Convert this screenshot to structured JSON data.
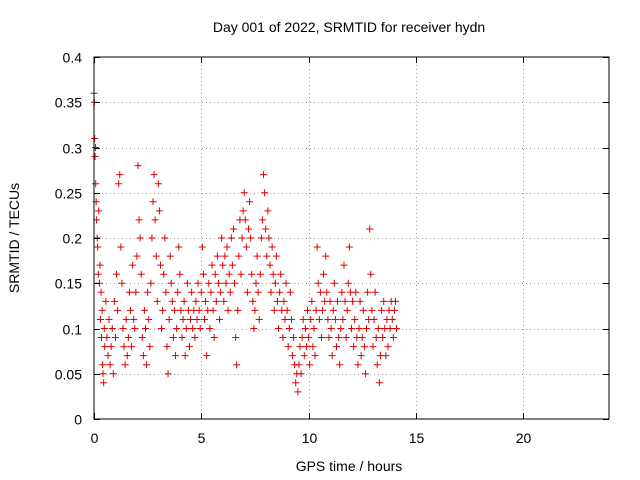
{
  "chart_data": {
    "type": "scatter",
    "title": "Day 001 of 2022, SRMTID for receiver hydn",
    "xlabel": "GPS time / hours",
    "ylabel": "SRMTID / TECUs",
    "xlim": [
      0,
      24
    ],
    "ylim": [
      0,
      0.4
    ],
    "xticks": [
      0,
      5,
      10,
      15,
      20
    ],
    "xtick_labels": [
      "0",
      "5",
      "10",
      "15",
      "20"
    ],
    "yticks": [
      0,
      0.05,
      0.1,
      0.15,
      0.2,
      0.25,
      0.3,
      0.35,
      0.4
    ],
    "ytick_labels": [
      "0",
      "0.05",
      "0.1",
      "0.15",
      "0.2",
      "0.25",
      "0.3",
      "0.35",
      "0.4"
    ],
    "grid": true,
    "marker": "+",
    "color": "#e00000",
    "series": [
      {
        "name": "SRMTID",
        "points": [
          [
            0.0,
            0.36
          ],
          [
            0.02,
            0.35
          ],
          [
            0.03,
            0.31
          ],
          [
            0.05,
            0.29
          ],
          [
            0.07,
            0.3
          ],
          [
            0.08,
            0.26
          ],
          [
            0.1,
            0.24
          ],
          [
            0.12,
            0.22
          ],
          [
            0.15,
            0.2
          ],
          [
            0.17,
            0.19
          ],
          [
            0.2,
            0.16
          ],
          [
            0.22,
            0.23
          ],
          [
            0.25,
            0.15
          ],
          [
            0.28,
            0.17
          ],
          [
            0.3,
            0.11
          ],
          [
            0.33,
            0.14
          ],
          [
            0.35,
            0.09
          ],
          [
            0.38,
            0.12
          ],
          [
            0.4,
            0.06
          ],
          [
            0.42,
            0.05
          ],
          [
            0.45,
            0.04
          ],
          [
            0.48,
            0.1
          ],
          [
            0.5,
            0.08
          ],
          [
            0.55,
            0.13
          ],
          [
            0.6,
            0.09
          ],
          [
            0.65,
            0.07
          ],
          [
            0.7,
            0.11
          ],
          [
            0.75,
            0.06
          ],
          [
            0.8,
            0.08
          ],
          [
            0.85,
            0.1
          ],
          [
            0.9,
            0.05
          ],
          [
            0.95,
            0.13
          ],
          [
            1.0,
            0.09
          ],
          [
            1.05,
            0.16
          ],
          [
            1.1,
            0.12
          ],
          [
            1.15,
            0.26
          ],
          [
            1.2,
            0.27
          ],
          [
            1.25,
            0.19
          ],
          [
            1.3,
            0.15
          ],
          [
            1.35,
            0.1
          ],
          [
            1.4,
            0.08
          ],
          [
            1.45,
            0.06
          ],
          [
            1.5,
            0.11
          ],
          [
            1.55,
            0.07
          ],
          [
            1.6,
            0.09
          ],
          [
            1.65,
            0.14
          ],
          [
            1.7,
            0.12
          ],
          [
            1.75,
            0.08
          ],
          [
            1.8,
            0.17
          ],
          [
            1.85,
            0.11
          ],
          [
            1.9,
            0.1
          ],
          [
            1.95,
            0.14
          ],
          [
            2.0,
            0.18
          ],
          [
            2.05,
            0.28
          ],
          [
            2.1,
            0.22
          ],
          [
            2.15,
            0.2
          ],
          [
            2.2,
            0.16
          ],
          [
            2.25,
            0.09
          ],
          [
            2.3,
            0.07
          ],
          [
            2.35,
            0.12
          ],
          [
            2.4,
            0.1
          ],
          [
            2.45,
            0.06
          ],
          [
            2.5,
            0.14
          ],
          [
            2.55,
            0.11
          ],
          [
            2.6,
            0.08
          ],
          [
            2.65,
            0.15
          ],
          [
            2.7,
            0.2
          ],
          [
            2.75,
            0.24
          ],
          [
            2.8,
            0.27
          ],
          [
            2.85,
            0.22
          ],
          [
            2.9,
            0.18
          ],
          [
            2.95,
            0.13
          ],
          [
            3.0,
            0.26
          ],
          [
            3.05,
            0.23
          ],
          [
            3.1,
            0.17
          ],
          [
            3.15,
            0.1
          ],
          [
            3.2,
            0.12
          ],
          [
            3.25,
            0.16
          ],
          [
            3.3,
            0.2
          ],
          [
            3.35,
            0.14
          ],
          [
            3.4,
            0.08
          ],
          [
            3.45,
            0.05
          ],
          [
            3.5,
            0.11
          ],
          [
            3.55,
            0.18
          ],
          [
            3.6,
            0.15
          ],
          [
            3.65,
            0.13
          ],
          [
            3.7,
            0.09
          ],
          [
            3.75,
            0.12
          ],
          [
            3.8,
            0.07
          ],
          [
            3.85,
            0.1
          ],
          [
            3.9,
            0.14
          ],
          [
            3.95,
            0.19
          ],
          [
            4.0,
            0.16
          ],
          [
            4.05,
            0.12
          ],
          [
            4.1,
            0.09
          ],
          [
            4.15,
            0.11
          ],
          [
            4.2,
            0.13
          ],
          [
            4.25,
            0.07
          ],
          [
            4.3,
            0.1
          ],
          [
            4.35,
            0.15
          ],
          [
            4.4,
            0.12
          ],
          [
            4.45,
            0.08
          ],
          [
            4.5,
            0.11
          ],
          [
            4.55,
            0.14
          ],
          [
            4.6,
            0.1
          ],
          [
            4.65,
            0.12
          ],
          [
            4.7,
            0.09
          ],
          [
            4.75,
            0.13
          ],
          [
            4.8,
            0.11
          ],
          [
            4.85,
            0.15
          ],
          [
            4.9,
            0.12
          ],
          [
            4.95,
            0.1
          ],
          [
            5.0,
            0.14
          ],
          [
            5.05,
            0.19
          ],
          [
            5.1,
            0.16
          ],
          [
            5.15,
            0.11
          ],
          [
            5.2,
            0.13
          ],
          [
            5.25,
            0.07
          ],
          [
            5.3,
            0.12
          ],
          [
            5.35,
            0.15
          ],
          [
            5.4,
            0.1
          ],
          [
            5.45,
            0.14
          ],
          [
            5.5,
            0.17
          ],
          [
            5.55,
            0.12
          ],
          [
            5.6,
            0.09
          ],
          [
            5.65,
            0.16
          ],
          [
            5.7,
            0.13
          ],
          [
            5.75,
            0.18
          ],
          [
            5.8,
            0.15
          ],
          [
            5.85,
            0.11
          ],
          [
            5.9,
            0.14
          ],
          [
            5.95,
            0.2
          ],
          [
            6.0,
            0.17
          ],
          [
            6.05,
            0.13
          ],
          [
            6.1,
            0.18
          ],
          [
            6.15,
            0.15
          ],
          [
            6.2,
            0.19
          ],
          [
            6.25,
            0.12
          ],
          [
            6.3,
            0.16
          ],
          [
            6.35,
            0.14
          ],
          [
            6.4,
            0.2
          ],
          [
            6.45,
            0.17
          ],
          [
            6.5,
            0.21
          ],
          [
            6.55,
            0.15
          ],
          [
            6.6,
            0.09
          ],
          [
            6.65,
            0.06
          ],
          [
            6.7,
            0.12
          ],
          [
            6.75,
            0.18
          ],
          [
            6.8,
            0.22
          ],
          [
            6.85,
            0.16
          ],
          [
            6.9,
            0.2
          ],
          [
            6.95,
            0.23
          ],
          [
            7.0,
            0.25
          ],
          [
            7.05,
            0.22
          ],
          [
            7.1,
            0.19
          ],
          [
            7.15,
            0.14
          ],
          [
            7.2,
            0.21
          ],
          [
            7.25,
            0.24
          ],
          [
            7.3,
            0.2
          ],
          [
            7.35,
            0.16
          ],
          [
            7.4,
            0.13
          ],
          [
            7.45,
            0.1
          ],
          [
            7.5,
            0.12
          ],
          [
            7.55,
            0.15
          ],
          [
            7.6,
            0.18
          ],
          [
            7.65,
            0.14
          ],
          [
            7.7,
            0.11
          ],
          [
            7.75,
            0.16
          ],
          [
            7.8,
            0.2
          ],
          [
            7.85,
            0.22
          ],
          [
            7.9,
            0.27
          ],
          [
            7.95,
            0.25
          ],
          [
            8.0,
            0.21
          ],
          [
            8.05,
            0.18
          ],
          [
            8.1,
            0.23
          ],
          [
            8.15,
            0.2
          ],
          [
            8.2,
            0.17
          ],
          [
            8.25,
            0.14
          ],
          [
            8.3,
            0.19
          ],
          [
            8.35,
            0.16
          ],
          [
            8.4,
            0.12
          ],
          [
            8.45,
            0.15
          ],
          [
            8.5,
            0.18
          ],
          [
            8.55,
            0.13
          ],
          [
            8.6,
            0.1
          ],
          [
            8.65,
            0.14
          ],
          [
            8.7,
            0.16
          ],
          [
            8.75,
            0.12
          ],
          [
            8.8,
            0.09
          ],
          [
            8.85,
            0.13
          ],
          [
            8.9,
            0.11
          ],
          [
            8.95,
            0.15
          ],
          [
            9.0,
            0.12
          ],
          [
            9.05,
            0.08
          ],
          [
            9.1,
            0.1
          ],
          [
            9.15,
            0.14
          ],
          [
            9.2,
            0.11
          ],
          [
            9.25,
            0.07
          ],
          [
            9.3,
            0.09
          ],
          [
            9.35,
            0.06
          ],
          [
            9.4,
            0.04
          ],
          [
            9.45,
            0.05
          ],
          [
            9.5,
            0.03
          ],
          [
            9.55,
            0.06
          ],
          [
            9.6,
            0.08
          ],
          [
            9.65,
            0.05
          ],
          [
            9.7,
            0.09
          ],
          [
            9.75,
            0.11
          ],
          [
            9.8,
            0.07
          ],
          [
            9.85,
            0.1
          ],
          [
            9.9,
            0.08
          ],
          [
            9.95,
            0.12
          ],
          [
            10.0,
            0.09
          ],
          [
            10.05,
            0.06
          ],
          [
            10.1,
            0.11
          ],
          [
            10.15,
            0.13
          ],
          [
            10.2,
            0.08
          ],
          [
            10.25,
            0.1
          ],
          [
            10.3,
            0.07
          ],
          [
            10.35,
            0.12
          ],
          [
            10.4,
            0.19
          ],
          [
            10.45,
            0.15
          ],
          [
            10.5,
            0.11
          ],
          [
            10.55,
            0.14
          ],
          [
            10.6,
            0.09
          ],
          [
            10.65,
            0.12
          ],
          [
            10.7,
            0.16
          ],
          [
            10.75,
            0.13
          ],
          [
            10.8,
            0.18
          ],
          [
            10.85,
            0.14
          ],
          [
            10.9,
            0.11
          ],
          [
            10.95,
            0.09
          ],
          [
            11.0,
            0.13
          ],
          [
            11.05,
            0.1
          ],
          [
            11.1,
            0.07
          ],
          [
            11.15,
            0.12
          ],
          [
            11.2,
            0.15
          ],
          [
            11.25,
            0.11
          ],
          [
            11.3,
            0.08
          ],
          [
            11.35,
            0.13
          ],
          [
            11.4,
            0.09
          ],
          [
            11.45,
            0.06
          ],
          [
            11.5,
            0.1
          ],
          [
            11.55,
            0.14
          ],
          [
            11.6,
            0.11
          ],
          [
            11.65,
            0.17
          ],
          [
            11.7,
            0.13
          ],
          [
            11.75,
            0.09
          ],
          [
            11.8,
            0.12
          ],
          [
            11.85,
            0.15
          ],
          [
            11.9,
            0.19
          ],
          [
            11.95,
            0.14
          ],
          [
            12.0,
            0.1
          ],
          [
            12.05,
            0.13
          ],
          [
            12.1,
            0.08
          ],
          [
            12.15,
            0.11
          ],
          [
            12.2,
            0.14
          ],
          [
            12.25,
            0.09
          ],
          [
            12.3,
            0.06
          ],
          [
            12.35,
            0.1
          ],
          [
            12.4,
            0.13
          ],
          [
            12.45,
            0.07
          ],
          [
            12.5,
            0.09
          ],
          [
            12.55,
            0.12
          ],
          [
            12.6,
            0.08
          ],
          [
            12.65,
            0.05
          ],
          [
            12.7,
            0.1
          ],
          [
            12.75,
            0.14
          ],
          [
            12.8,
            0.11
          ],
          [
            12.85,
            0.21
          ],
          [
            12.9,
            0.16
          ],
          [
            12.95,
            0.12
          ],
          [
            13.0,
            0.08
          ],
          [
            13.05,
            0.11
          ],
          [
            13.1,
            0.14
          ],
          [
            13.15,
            0.09
          ],
          [
            13.2,
            0.06
          ],
          [
            13.25,
            0.1
          ],
          [
            13.3,
            0.04
          ],
          [
            13.35,
            0.07
          ],
          [
            13.4,
            0.12
          ],
          [
            13.45,
            0.09
          ],
          [
            13.5,
            0.13
          ],
          [
            13.55,
            0.1
          ],
          [
            13.6,
            0.07
          ],
          [
            13.65,
            0.11
          ],
          [
            13.7,
            0.08
          ],
          [
            13.75,
            0.12
          ],
          [
            13.8,
            0.1
          ],
          [
            13.85,
            0.13
          ],
          [
            13.9,
            0.11
          ],
          [
            13.95,
            0.09
          ],
          [
            14.0,
            0.12
          ],
          [
            14.05,
            0.13
          ],
          [
            14.1,
            0.1
          ]
        ]
      }
    ]
  }
}
